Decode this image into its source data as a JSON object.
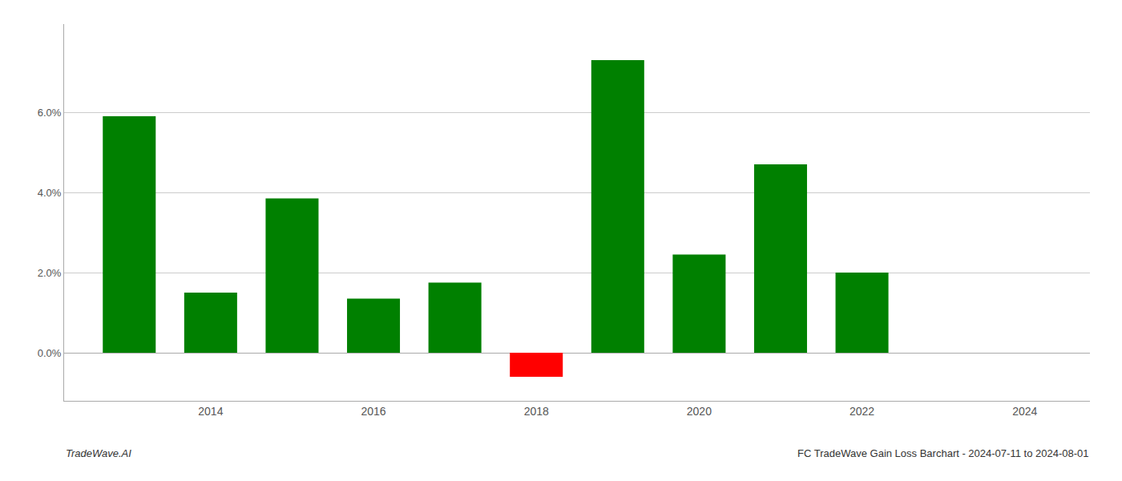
{
  "chart_data": {
    "type": "bar",
    "x": [
      2013,
      2014,
      2015,
      2016,
      2017,
      2018,
      2019,
      2020,
      2021,
      2022,
      2023
    ],
    "values": [
      0.059,
      0.015,
      0.0385,
      0.0135,
      0.0175,
      -0.006,
      0.073,
      0.0245,
      0.047,
      0.02,
      0.0
    ],
    "colors": [
      "#008000",
      "#008000",
      "#008000",
      "#008000",
      "#008000",
      "#ff0000",
      "#008000",
      "#008000",
      "#008000",
      "#008000",
      "#008000"
    ],
    "xlim": [
      2012.2,
      2024.8
    ],
    "xticks": [
      2014,
      2016,
      2018,
      2020,
      2022,
      2024
    ],
    "ylim": [
      -0.012,
      0.082
    ],
    "yticks": [
      {
        "value": 0.0,
        "label": "0.0%"
      },
      {
        "value": 0.02,
        "label": "2.0%"
      },
      {
        "value": 0.04,
        "label": "4.0%"
      },
      {
        "value": 0.06,
        "label": "6.0%"
      }
    ],
    "grid": true,
    "annotations": [
      "TradeWave.AI",
      "FC TradeWave Gain Loss Barchart - 2024-07-11 to 2024-08-01"
    ]
  }
}
